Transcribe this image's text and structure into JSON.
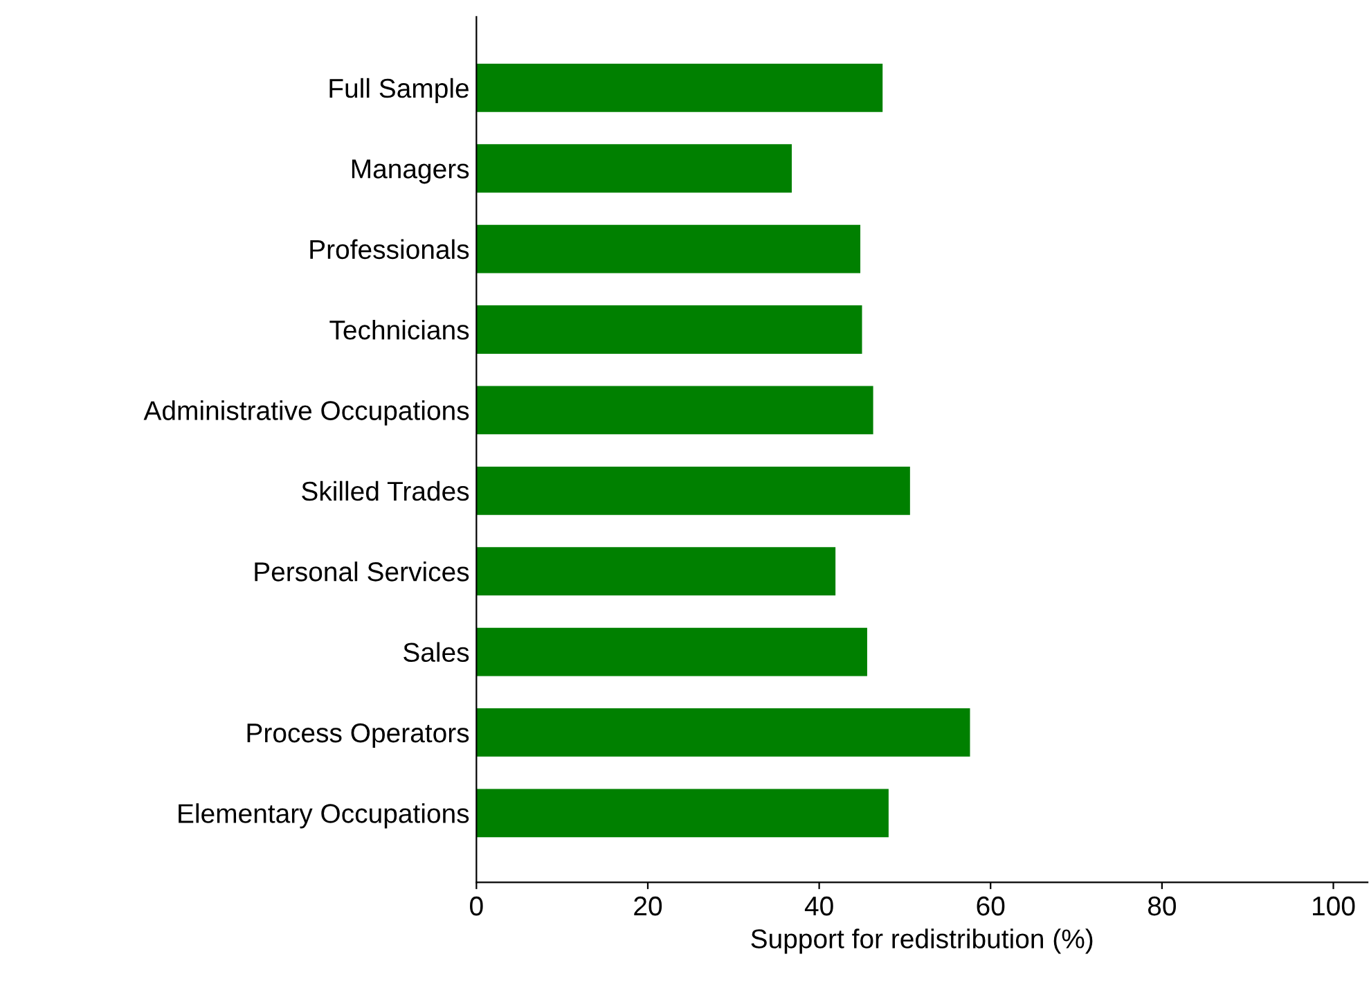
{
  "chart_data": {
    "type": "bar",
    "orientation": "horizontal",
    "categories": [
      "Full Sample",
      "Managers",
      "Professionals",
      "Technicians",
      "Administrative Occupations",
      "Skilled Trades",
      "Personal Services",
      "Sales",
      "Process Operators",
      "Elementary Occupations"
    ],
    "values": [
      47.4,
      36.8,
      44.8,
      45.0,
      46.3,
      50.6,
      41.9,
      45.6,
      57.6,
      48.1
    ],
    "color": "#008000",
    "xlabel": "Support for redistribution (%)",
    "xlim": [
      0,
      104
    ],
    "xticks": [
      0,
      20,
      40,
      60,
      80,
      100
    ],
    "grid": false,
    "legend": false
  }
}
